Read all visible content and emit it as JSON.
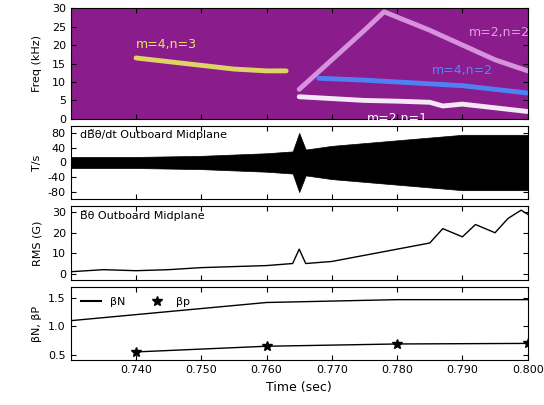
{
  "chart_data": [
    {
      "type": "spectrogram",
      "y_label": "Freq (kHz)",
      "tick_labels": "y",
      "xlim": [
        0.73,
        0.8
      ],
      "xticks": [
        {
          "value": 0.74,
          "label": "0.740"
        },
        {
          "value": 0.75,
          "label": "0.750"
        },
        {
          "value": 0.76,
          "label": "0.760"
        },
        {
          "value": 0.77,
          "label": "0.770"
        },
        {
          "value": 0.78,
          "label": "0.780"
        },
        {
          "value": 0.79,
          "label": "0.790"
        },
        {
          "value": 0.8,
          "label": "0.800"
        }
      ],
      "ylim": [
        0,
        30
      ],
      "yticks": [
        0,
        5,
        10,
        15,
        20,
        25,
        30
      ],
      "series": [
        {
          "name": "m=4,n=3",
          "color": "#e8e860",
          "x": [
            0.74,
            0.745,
            0.75,
            0.755,
            0.76,
            0.763
          ],
          "values": [
            16.5,
            15.5,
            14.5,
            13.5,
            13.0,
            13.0
          ]
        },
        {
          "name": "m=2,n=2",
          "color": "#e0a0e8",
          "x": [
            0.765,
            0.77,
            0.775,
            0.778,
            0.785,
            0.79,
            0.795,
            0.8
          ],
          "values": [
            8,
            16,
            24,
            29,
            24,
            20,
            16,
            13
          ]
        },
        {
          "name": "m=4,n=2",
          "color": "#4a8cff",
          "x": [
            0.768,
            0.775,
            0.78,
            0.785,
            0.79,
            0.795,
            0.8
          ],
          "values": [
            11,
            10.5,
            10,
            9.5,
            9,
            8,
            7
          ]
        },
        {
          "name": "m=2,n=1",
          "color": "#ffffff",
          "x": [
            0.765,
            0.77,
            0.775,
            0.78,
            0.785,
            0.787,
            0.79,
            0.795,
            0.8
          ],
          "values": [
            6,
            5.5,
            5,
            4.8,
            4.5,
            3.5,
            4,
            3,
            2
          ]
        }
      ]
    },
    {
      "type": "band",
      "title": "dB̃θ/dt Outboard Midplane",
      "y_label": "T/s",
      "tick_labels": "y",
      "xlim": [
        0.73,
        0.8
      ],
      "xticks": [
        {
          "value": 0.74,
          "label": "0.740"
        },
        {
          "value": 0.75,
          "label": "0.750"
        },
        {
          "value": 0.76,
          "label": "0.760"
        },
        {
          "value": 0.77,
          "label": "0.770"
        },
        {
          "value": 0.78,
          "label": "0.780"
        },
        {
          "value": 0.79,
          "label": "0.790"
        },
        {
          "value": 0.8,
          "label": "0.800"
        }
      ],
      "ylim": [
        -100,
        100
      ],
      "yticks": [
        -80,
        -40,
        0,
        40,
        80
      ],
      "color": "#000000",
      "x": [
        0.73,
        0.74,
        0.75,
        0.76,
        0.764,
        0.765,
        0.766,
        0.77,
        0.78,
        0.79,
        0.8
      ],
      "values": [
        15,
        15,
        18,
        25,
        30,
        80,
        35,
        45,
        60,
        75,
        75
      ]
    },
    {
      "type": "line",
      "title": "B̃θ Outboard Midplane",
      "y_label": "RMS (G)",
      "tick_labels": "y",
      "xlim": [
        0.73,
        0.8
      ],
      "xticks": [
        {
          "value": 0.74,
          "label": "0.740"
        },
        {
          "value": 0.75,
          "label": "0.750"
        },
        {
          "value": 0.76,
          "label": "0.760"
        },
        {
          "value": 0.77,
          "label": "0.770"
        },
        {
          "value": 0.78,
          "label": "0.780"
        },
        {
          "value": 0.79,
          "label": "0.790"
        },
        {
          "value": 0.8,
          "label": "0.800"
        }
      ],
      "ylim": [
        -3,
        33
      ],
      "yticks": [
        0,
        10,
        20,
        30
      ],
      "series": [
        {
          "color": "#000000",
          "line_style": "solid",
          "x": [
            0.73,
            0.735,
            0.74,
            0.745,
            0.75,
            0.755,
            0.76,
            0.764,
            0.765,
            0.766,
            0.77,
            0.775,
            0.78,
            0.785,
            0.787,
            0.79,
            0.792,
            0.795,
            0.797,
            0.799,
            0.8
          ],
          "values": [
            1,
            2,
            1.5,
            2,
            3,
            3.5,
            4,
            5,
            12,
            5,
            6,
            9,
            12,
            15,
            22,
            18,
            24,
            20,
            27,
            31,
            29
          ]
        }
      ]
    },
    {
      "type": "line",
      "x_label": "Time (sec)",
      "y_label": "βN, βP",
      "legend": "upper left",
      "xlim": [
        0.73,
        0.8
      ],
      "xticks": [
        {
          "value": 0.74,
          "label": "0.740"
        },
        {
          "value": 0.75,
          "label": "0.750"
        },
        {
          "value": 0.76,
          "label": "0.760"
        },
        {
          "value": 0.77,
          "label": "0.770"
        },
        {
          "value": 0.78,
          "label": "0.780"
        },
        {
          "value": 0.79,
          "label": "0.790"
        },
        {
          "value": 0.8,
          "label": "0.800"
        }
      ],
      "ylim": [
        0.4,
        1.7
      ],
      "yticks": [
        {
          "value": 0.5,
          "label": "0.5"
        },
        {
          "value": 1.0,
          "label": "1.0"
        },
        {
          "value": 1.5,
          "label": "1.5"
        }
      ],
      "series": [
        {
          "name": "βN",
          "color": "#000000",
          "line_style": "solid",
          "marker": "none",
          "x": [
            0.73,
            0.76,
            0.78,
            0.8
          ],
          "values": [
            1.1,
            1.42,
            1.47,
            1.47
          ]
        },
        {
          "name": "βp",
          "color": "#000000",
          "line_style": "solid",
          "marker": "*",
          "x": [
            0.74,
            0.76,
            0.78,
            0.8
          ],
          "values": [
            0.55,
            0.65,
            0.69,
            0.7
          ]
        }
      ]
    }
  ]
}
